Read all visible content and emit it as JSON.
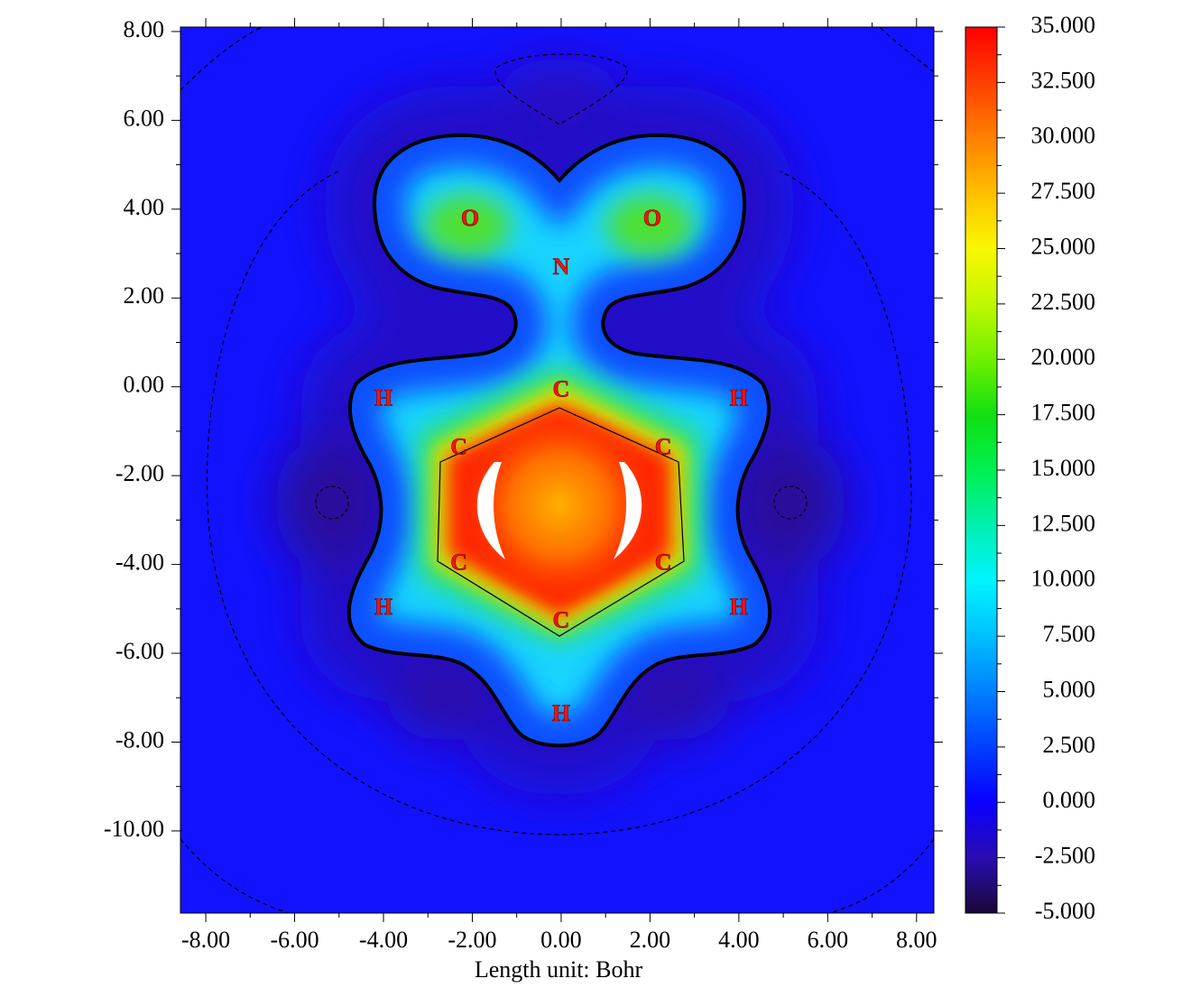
{
  "chart_data": {
    "type": "contour",
    "xlabel": "Length unit: Bohr",
    "xlim": [
      -8.57,
      8.39
    ],
    "ylim": [
      -11.85,
      8.1
    ],
    "xticks": [
      {
        "value": -8,
        "label": "-8.00"
      },
      {
        "value": -6,
        "label": "-6.00"
      },
      {
        "value": -4,
        "label": "-4.00"
      },
      {
        "value": -2,
        "label": "-2.00"
      },
      {
        "value": 0,
        "label": "0.00"
      },
      {
        "value": 2,
        "label": "2.00"
      },
      {
        "value": 4,
        "label": "4.00"
      },
      {
        "value": 6,
        "label": "6.00"
      },
      {
        "value": 8,
        "label": "8.00"
      }
    ],
    "yticks": [
      {
        "value": 8,
        "label": "8.00"
      },
      {
        "value": 6,
        "label": "6.00"
      },
      {
        "value": 4,
        "label": "4.00"
      },
      {
        "value": 2,
        "label": "2.00"
      },
      {
        "value": 0,
        "label": "0.00"
      },
      {
        "value": -2,
        "label": "-2.00"
      },
      {
        "value": -4,
        "label": "-4.00"
      },
      {
        "value": -6,
        "label": "-6.00"
      },
      {
        "value": -8,
        "label": "-8.00"
      },
      {
        "value": -10,
        "label": "-10.00"
      }
    ],
    "atoms": [
      {
        "label": "O",
        "x": -2.05,
        "y": 3.75
      },
      {
        "label": "O",
        "x": 2.05,
        "y": 3.75
      },
      {
        "label": "N",
        "x": 0.0,
        "y": 2.65
      },
      {
        "label": "C",
        "x": 0.0,
        "y": -0.1
      },
      {
        "label": "C",
        "x": -2.3,
        "y": -1.4
      },
      {
        "label": "C",
        "x": 2.3,
        "y": -1.4
      },
      {
        "label": "C",
        "x": -2.3,
        "y": -4.0
      },
      {
        "label": "C",
        "x": 2.3,
        "y": -4.0
      },
      {
        "label": "C",
        "x": 0.0,
        "y": -5.3
      },
      {
        "label": "H",
        "x": -4.0,
        "y": -0.3
      },
      {
        "label": "H",
        "x": 4.0,
        "y": -0.3
      },
      {
        "label": "H",
        "x": -4.0,
        "y": -5.0
      },
      {
        "label": "H",
        "x": 4.0,
        "y": -5.0
      },
      {
        "label": "H",
        "x": 0.0,
        "y": -7.4
      }
    ],
    "colorbar": {
      "lim": [
        -5,
        35
      ],
      "ticks": [
        {
          "value": 35,
          "label": "35.000"
        },
        {
          "value": 32.5,
          "label": "32.500"
        },
        {
          "value": 30,
          "label": "30.000"
        },
        {
          "value": 27.5,
          "label": "27.500"
        },
        {
          "value": 25,
          "label": "25.000"
        },
        {
          "value": 22.5,
          "label": "22.500"
        },
        {
          "value": 20,
          "label": "20.000"
        },
        {
          "value": 17.5,
          "label": "17.500"
        },
        {
          "value": 15,
          "label": "15.000"
        },
        {
          "value": 12.5,
          "label": "12.500"
        },
        {
          "value": 10,
          "label": "10.000"
        },
        {
          "value": 7.5,
          "label": "7.500"
        },
        {
          "value": 5,
          "label": "5.000"
        },
        {
          "value": 2.5,
          "label": "2.500"
        },
        {
          "value": 0,
          "label": "0.000"
        },
        {
          "value": -2.5,
          "label": "-2.500"
        },
        {
          "value": -5,
          "label": "-5.000"
        }
      ],
      "colors": [
        "#1a0838",
        "#2a0cb0",
        "#0a00ff",
        "#0040ff",
        "#0080ff",
        "#00c0ff",
        "#00f4ff",
        "#00f0b0",
        "#00f050",
        "#10e010",
        "#70f000",
        "#c0f800",
        "#f8f800",
        "#ffc000",
        "#ff8000",
        "#ff4000",
        "#ff0000"
      ]
    }
  }
}
